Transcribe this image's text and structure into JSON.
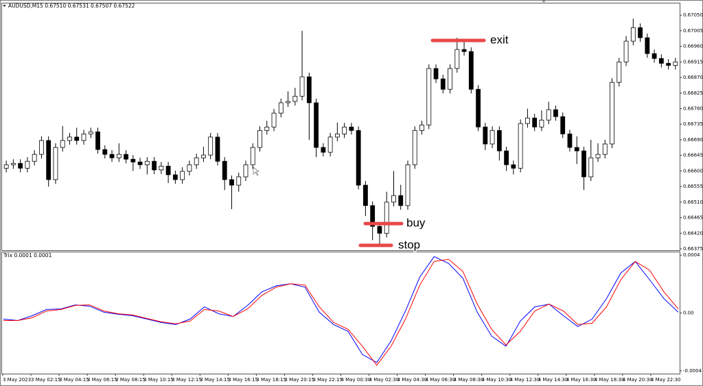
{
  "chart_data": [
    {
      "type": "candlestick",
      "title": "AUDUSD,M15 0.67510 0.67531 0.67507 0.67522",
      "categories": [
        "3 May 2023",
        null,
        null,
        null,
        "3 May 02:15",
        null,
        null,
        null,
        "3 May 04:15",
        null,
        null,
        null,
        "3 May 06:15",
        null,
        null,
        null,
        "3 May 08:15",
        null,
        null,
        null,
        "3 May 10:15",
        null,
        null,
        null,
        "3 May 12:15",
        null,
        null,
        null,
        "3 May 14:15",
        null,
        null,
        null,
        "3 May 16:15",
        null,
        null,
        null,
        "3 May 18:15",
        null,
        null,
        null,
        "3 May 20:15",
        null,
        null,
        null,
        "3 May 22:15",
        null,
        null,
        null,
        "4 May 00:30",
        null,
        null,
        null,
        "4 May 02:30",
        null,
        null,
        null,
        "4 May 04:30",
        null,
        null,
        null,
        "4 May 06:30",
        null,
        null,
        null,
        "4 May 08:30",
        null,
        null,
        null,
        "4 May 10:30",
        null,
        null,
        null,
        "4 May 12:30",
        null,
        null,
        null,
        "4 May 14:30",
        null,
        null,
        null,
        "4 May 16:30",
        null,
        null,
        null,
        "4 May 18:30",
        null,
        null,
        null,
        "4 May 20:30",
        null,
        null,
        null,
        "4 May 22:30",
        null,
        null,
        null
      ],
      "open": [
        0.66608,
        0.66618,
        0.66622,
        0.66608,
        0.66628,
        0.66648,
        0.66688,
        0.66575,
        0.66668,
        0.66688,
        0.66698,
        0.66688,
        0.66707,
        0.66713,
        0.66662,
        0.66648,
        0.66638,
        0.66648,
        0.66634,
        0.66626,
        0.66618,
        0.66628,
        0.66603,
        0.66614,
        0.66589,
        0.66575,
        0.66599,
        0.66618,
        0.66638,
        0.66646,
        0.66698,
        0.66628,
        0.66575,
        0.66559,
        0.66583,
        0.66618,
        0.66668,
        0.66717,
        0.66727,
        0.66767,
        0.66797,
        0.66801,
        0.66816,
        0.66872,
        0.66797,
        0.66668,
        0.66654,
        0.66698,
        0.66707,
        0.66727,
        0.66717,
        0.66559,
        0.665,
        0.6644,
        0.6642,
        0.6651,
        0.66529,
        0.665,
        0.66618,
        0.66717,
        0.66733,
        0.66896,
        0.66866,
        0.66836,
        0.66896,
        0.66951,
        0.66945,
        0.66836,
        0.66727,
        0.66678,
        0.66717,
        0.66658,
        0.66618,
        0.66608,
        0.66737,
        0.66753,
        0.66727,
        0.66747,
        0.66777,
        0.66757,
        0.66707,
        0.66668,
        0.66658,
        0.66583,
        0.66638,
        0.66648,
        0.66678,
        0.66856,
        0.66915,
        0.66975,
        0.67014,
        0.66985,
        0.66939,
        0.66925,
        0.66911,
        0.66905
      ],
      "high": [
        0.6663,
        0.66634,
        0.66634,
        0.6664,
        0.6666,
        0.667,
        0.667,
        0.6668,
        0.6673,
        0.6671,
        0.66725,
        0.66719,
        0.66725,
        0.66725,
        0.66674,
        0.6666,
        0.6668,
        0.6666,
        0.66646,
        0.66638,
        0.6664,
        0.6664,
        0.66626,
        0.66626,
        0.66601,
        0.66611,
        0.6663,
        0.6665,
        0.6667,
        0.6671,
        0.6671,
        0.6664,
        0.66587,
        0.66595,
        0.6663,
        0.6668,
        0.66729,
        0.66745,
        0.66779,
        0.66809,
        0.6683,
        0.6684,
        0.67005,
        0.66884,
        0.66809,
        0.6668,
        0.6671,
        0.6674,
        0.66739,
        0.66739,
        0.66729,
        0.66571,
        0.66512,
        0.66452,
        0.6654,
        0.666,
        0.6656,
        0.6663,
        0.66729,
        0.66745,
        0.66908,
        0.66908,
        0.66878,
        0.66908,
        0.66985,
        0.66975,
        0.66957,
        0.66848,
        0.66739,
        0.66729,
        0.66729,
        0.6667,
        0.6663,
        0.66749,
        0.6678,
        0.66765,
        0.66775,
        0.668,
        0.66789,
        0.66769,
        0.66719,
        0.667,
        0.6667,
        0.6669,
        0.6668,
        0.6669,
        0.66868,
        0.66927,
        0.6699,
        0.6704,
        0.67026,
        0.66997,
        0.66951,
        0.66937,
        0.66923,
        0.66927
      ],
      "low": [
        0.66596,
        0.66606,
        0.66596,
        0.66596,
        0.66616,
        0.66636,
        0.66555,
        0.66563,
        0.66656,
        0.66676,
        0.66676,
        0.66676,
        0.66695,
        0.6665,
        0.66636,
        0.66626,
        0.66626,
        0.66622,
        0.666,
        0.66606,
        0.6659,
        0.66591,
        0.66591,
        0.66565,
        0.66563,
        0.66563,
        0.66587,
        0.66606,
        0.66626,
        0.66634,
        0.66616,
        0.66545,
        0.6649,
        0.6654,
        0.66571,
        0.66606,
        0.66656,
        0.66705,
        0.66715,
        0.66755,
        0.66785,
        0.66789,
        0.66804,
        0.6669,
        0.6664,
        0.66642,
        0.66642,
        0.66686,
        0.66695,
        0.66705,
        0.66547,
        0.6647,
        0.664,
        0.6639,
        0.66408,
        0.66498,
        0.66488,
        0.66488,
        0.66606,
        0.66705,
        0.66721,
        0.66854,
        0.66824,
        0.66824,
        0.66884,
        0.66933,
        0.66824,
        0.66715,
        0.6666,
        0.66666,
        0.6663,
        0.666,
        0.6659,
        0.66596,
        0.66725,
        0.66715,
        0.66715,
        0.66735,
        0.66745,
        0.66695,
        0.66656,
        0.6662,
        0.66545,
        0.66571,
        0.66626,
        0.66636,
        0.66666,
        0.66844,
        0.66903,
        0.66963,
        0.66973,
        0.66927,
        0.66913,
        0.66899,
        0.66893,
        0.66893
      ],
      "close": [
        0.66618,
        0.66622,
        0.66608,
        0.66628,
        0.66648,
        0.66688,
        0.66575,
        0.66668,
        0.66688,
        0.66698,
        0.66688,
        0.66707,
        0.66713,
        0.66662,
        0.66648,
        0.66638,
        0.66648,
        0.66634,
        0.66626,
        0.66618,
        0.66628,
        0.66603,
        0.66614,
        0.66589,
        0.66575,
        0.66599,
        0.66618,
        0.66638,
        0.66646,
        0.66698,
        0.66628,
        0.66575,
        0.66559,
        0.66583,
        0.66618,
        0.66668,
        0.66717,
        0.66727,
        0.66767,
        0.66797,
        0.66801,
        0.66816,
        0.66872,
        0.66797,
        0.66668,
        0.66654,
        0.66698,
        0.66707,
        0.66727,
        0.66717,
        0.66559,
        0.665,
        0.6644,
        0.6642,
        0.6651,
        0.66529,
        0.665,
        0.66618,
        0.66717,
        0.66733,
        0.66896,
        0.66866,
        0.66836,
        0.66896,
        0.66951,
        0.66945,
        0.66836,
        0.66727,
        0.66678,
        0.66717,
        0.66658,
        0.66618,
        0.66608,
        0.66737,
        0.66753,
        0.66727,
        0.66747,
        0.66777,
        0.66757,
        0.66707,
        0.66668,
        0.66658,
        0.66583,
        0.66638,
        0.66648,
        0.66678,
        0.66856,
        0.66915,
        0.66975,
        0.67014,
        0.66985,
        0.66939,
        0.66925,
        0.66911,
        0.66905,
        0.66915
      ],
      "up_color": "#ffffff",
      "down_color": "#000000",
      "ylim": [
        0.66371,
        0.67084
      ],
      "yticks": [
        {
          "value": 0.6705,
          "label": "0.67050"
        },
        {
          "value": 0.67005,
          "label": "0.67005"
        },
        {
          "value": 0.6696,
          "label": "0.66960"
        },
        {
          "value": 0.66915,
          "label": "0.66915"
        },
        {
          "value": 0.6687,
          "label": "0.66870"
        },
        {
          "value": 0.66825,
          "label": "0.66825"
        },
        {
          "value": 0.6678,
          "label": "0.66780"
        },
        {
          "value": 0.66735,
          "label": "0.66735"
        },
        {
          "value": 0.6669,
          "label": "0.66690"
        },
        {
          "value": 0.66645,
          "label": "0.66645"
        },
        {
          "value": 0.666,
          "label": "0.66600"
        },
        {
          "value": 0.66555,
          "label": "0.66555"
        },
        {
          "value": 0.6651,
          "label": "0.66510"
        },
        {
          "value": 0.66465,
          "label": "0.66465"
        },
        {
          "value": 0.6642,
          "label": "0.66420"
        },
        {
          "value": 0.66375,
          "label": "0.66375"
        }
      ],
      "annotation_line_color": "#e84848",
      "annotations": [
        {
          "text": "exit",
          "value": 0.66977,
          "color": "#e03cc8"
        },
        {
          "text": "buy",
          "value": 0.66448,
          "color": "#2e9e2e"
        },
        {
          "text": "stop",
          "value": 0.66385,
          "color": "#e8403a"
        }
      ]
    },
    {
      "type": "line",
      "title": "Trix 0.0001 0.0001",
      "series": [
        {
          "color": "#0000ff",
          "values": [
            -4.2e-05,
            -5.2e-05,
            -1.9e-05,
            2.4e-05,
            2.8e-05,
            5.6e-05,
            4.7e-05,
            5e-06,
            -9e-06,
            -1.9e-05,
            -4.2e-05,
            -6.6e-05,
            -8e-05,
            -4.2e-05,
            4.2e-05,
            -5e-06,
            -2.4e-05,
            5.2e-05,
            0.000146,
            0.000188,
            0.000202,
            0.000179,
            5e-06,
            -8e-05,
            -0.000127,
            -0.000287,
            -0.000343,
            -0.000193,
            1.4e-05,
            0.000249,
            0.00039,
            0.000343,
            0.00024,
            5e-06,
            -0.00016,
            -0.00023,
            -5.6e-05,
            4.2e-05,
            6.1e-05,
            -1.9e-05,
            -9.4e-05,
            -4.2e-05,
            9.9e-05,
            0.000277,
            0.000357,
            0.00023,
            9.9e-05,
            5e-06
          ]
        },
        {
          "color": "#ff0000",
          "values": [
            -5.2e-05,
            -5.2e-05,
            -3.3e-05,
            1.4e-05,
            2.4e-05,
            5.2e-05,
            5.6e-05,
            1.4e-05,
            -5e-06,
            -1.4e-05,
            -3.8e-05,
            -6.1e-05,
            -7.5e-05,
            -5.6e-05,
            2.4e-05,
            1.4e-05,
            -2.4e-05,
            2.8e-05,
            0.000122,
            0.000179,
            0.000202,
            0.000193,
            4.2e-05,
            -6.6e-05,
            -0.000113,
            -0.00023,
            -0.000362,
            -0.00023,
            -4.2e-05,
            0.000193,
            0.000357,
            0.000371,
            0.000287,
            6.1e-05,
            -0.000113,
            -0.000221,
            -0.000127,
            1.4e-05,
            6.1e-05,
            1.4e-05,
            -8e-05,
            -7.1e-05,
            4.2e-05,
            0.00023,
            0.000357,
            0.000296,
            0.000146,
            2.8e-05
          ]
        }
      ],
      "ylim": [
        -0.00042,
        0.00042
      ],
      "yticks": [
        0.0004,
        {
          "value": 0,
          "label": "0.00"
        },
        -0.0004
      ]
    }
  ]
}
